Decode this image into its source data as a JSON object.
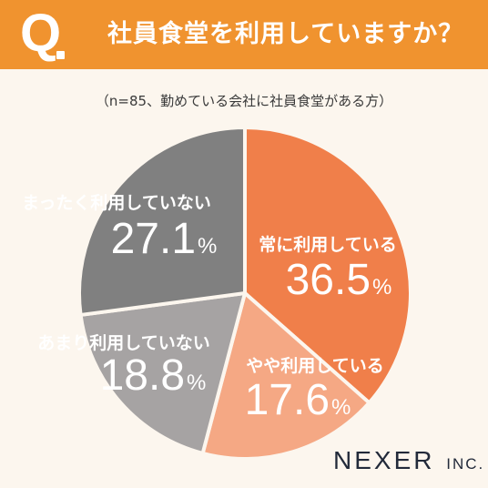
{
  "header": {
    "q_mark": "Q",
    "question": "社員食堂を利用していますか？"
  },
  "note": "（n=85、勤めている会社に社員食堂がある方）",
  "brand": {
    "name": "NEXER",
    "suffix": "INC."
  },
  "chart_data": {
    "type": "pie",
    "title": "社員食堂を利用していますか？",
    "slices": [
      {
        "label": "常に利用している",
        "value": 36.5,
        "value_label": "36.5",
        "color": "#f07f4a"
      },
      {
        "label": "やや利用している",
        "value": 17.6,
        "value_label": "17.6",
        "color": "#f5a884"
      },
      {
        "label": "あまり利用していない",
        "value": 18.8,
        "value_label": "18.8",
        "color": "#a6a3a3"
      },
      {
        "label": "まったく利用していない",
        "value": 27.1,
        "value_label": "27.1",
        "color": "#808080"
      }
    ],
    "unit": "%"
  }
}
